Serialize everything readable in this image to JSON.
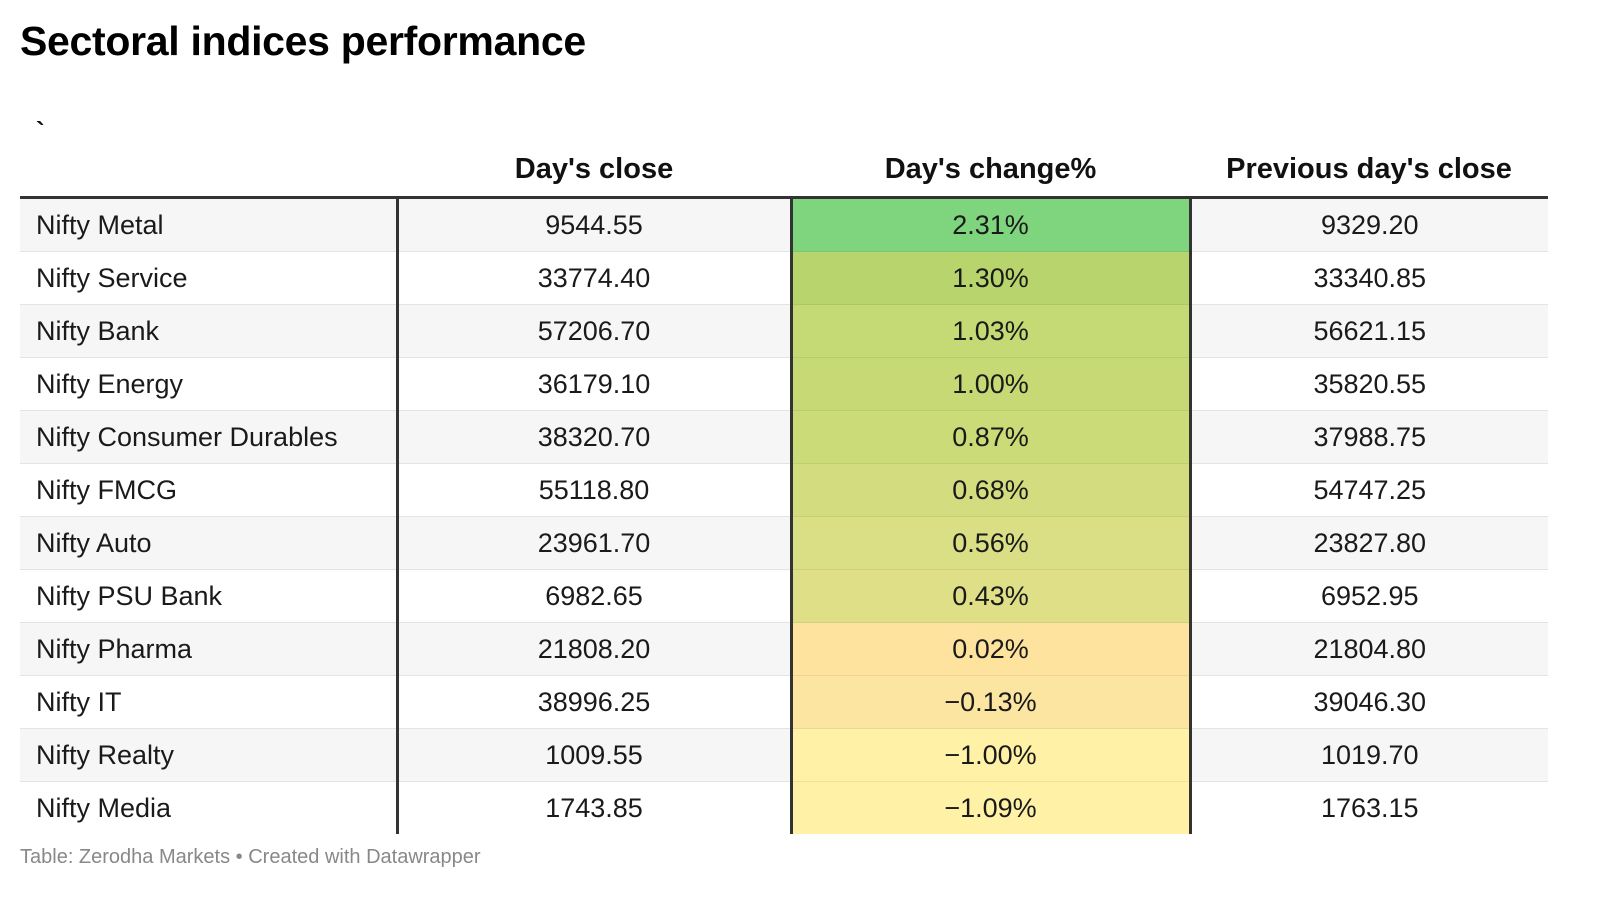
{
  "title": "Sectoral indices performance",
  "footer": {
    "source": "Table: Zerodha Markets",
    "separator": " • ",
    "credit": "Created with Datawrapper"
  },
  "colors": {
    "header_rule": "#333333",
    "stripe": "#f6f6f6",
    "scale_high": "#7fd47e",
    "scale_mid_high": "#c3d96d",
    "scale_mid": "#dbdf84",
    "scale_low": "#fde39e",
    "scale_lowest": "#fff2a6"
  },
  "chart_data": {
    "type": "table",
    "columns": [
      "`",
      "Day's close",
      "Day's change%",
      "Previous day's close"
    ],
    "rows": [
      {
        "name": "Nifty Metal",
        "close": "9544.55",
        "change": "2.31%",
        "prev": "9329.20",
        "change_value": 2.31,
        "cell_color": "#7fd47e"
      },
      {
        "name": "Nifty Service",
        "close": "33774.40",
        "change": "1.30%",
        "prev": "33340.85",
        "change_value": 1.3,
        "cell_color": "#b8d46c"
      },
      {
        "name": "Nifty Bank",
        "close": "57206.70",
        "change": "1.03%",
        "prev": "56621.15",
        "change_value": 1.03,
        "cell_color": "#c5d974"
      },
      {
        "name": "Nifty Energy",
        "close": "36179.10",
        "change": "1.00%",
        "prev": "35820.55",
        "change_value": 1.0,
        "cell_color": "#c6d975"
      },
      {
        "name": "Nifty Consumer Durables",
        "close": "38320.70",
        "change": "0.87%",
        "prev": "37988.75",
        "change_value": 0.87,
        "cell_color": "#cadb77"
      },
      {
        "name": "Nifty FMCG",
        "close": "55118.80",
        "change": "0.68%",
        "prev": "54747.25",
        "change_value": 0.68,
        "cell_color": "#d3dc7e"
      },
      {
        "name": "Nifty Auto",
        "close": "23961.70",
        "change": "0.56%",
        "prev": "23827.80",
        "change_value": 0.56,
        "cell_color": "#dade84"
      },
      {
        "name": "Nifty PSU Bank",
        "close": "6982.65",
        "change": "0.43%",
        "prev": "6952.95",
        "change_value": 0.43,
        "cell_color": "#dedf87"
      },
      {
        "name": "Nifty Pharma",
        "close": "21808.20",
        "change": "0.02%",
        "prev": "21804.80",
        "change_value": 0.02,
        "cell_color": "#fde39e"
      },
      {
        "name": "Nifty IT",
        "close": "38996.25",
        "change": "−0.13%",
        "prev": "39046.30",
        "change_value": -0.13,
        "cell_color": "#fce5a1"
      },
      {
        "name": "Nifty Realty",
        "close": "1009.55",
        "change": "−1.00%",
        "prev": "1019.70",
        "change_value": -1.0,
        "cell_color": "#fff1a6"
      },
      {
        "name": "Nifty Media",
        "close": "1743.85",
        "change": "−1.09%",
        "prev": "1763.15",
        "change_value": -1.09,
        "cell_color": "#fff2a6"
      }
    ]
  }
}
